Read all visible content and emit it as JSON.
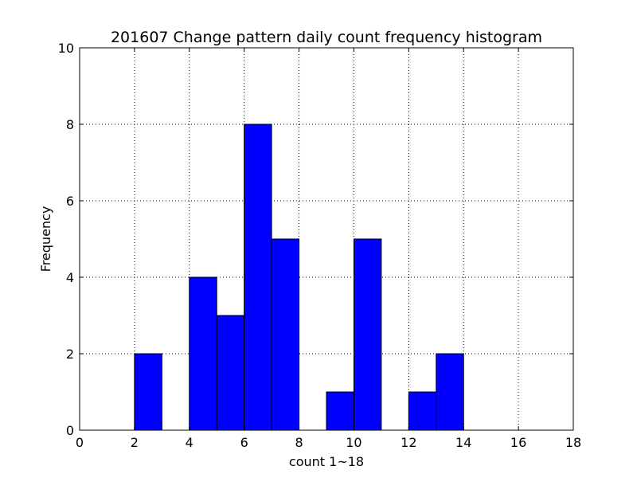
{
  "chart_data": {
    "type": "bar",
    "title": "201607 Change pattern daily count frequency histogram",
    "xlabel": "count 1~18",
    "ylabel": "Frequency",
    "xlim": [
      0,
      18
    ],
    "ylim": [
      0,
      10
    ],
    "xticks": [
      0,
      2,
      4,
      6,
      8,
      10,
      12,
      14,
      16,
      18
    ],
    "yticks": [
      0,
      2,
      4,
      6,
      8,
      10
    ],
    "grid": true,
    "bar_color": "#0000ff",
    "bins": [
      {
        "x0": 1,
        "x1": 2,
        "value": 0
      },
      {
        "x0": 2,
        "x1": 3,
        "value": 2
      },
      {
        "x0": 3,
        "x1": 4,
        "value": 0
      },
      {
        "x0": 4,
        "x1": 5,
        "value": 4
      },
      {
        "x0": 5,
        "x1": 6,
        "value": 3
      },
      {
        "x0": 6,
        "x1": 7,
        "value": 8
      },
      {
        "x0": 7,
        "x1": 8,
        "value": 5
      },
      {
        "x0": 8,
        "x1": 9,
        "value": 0
      },
      {
        "x0": 9,
        "x1": 10,
        "value": 1
      },
      {
        "x0": 10,
        "x1": 11,
        "value": 5
      },
      {
        "x0": 11,
        "x1": 12,
        "value": 0
      },
      {
        "x0": 12,
        "x1": 13,
        "value": 1
      },
      {
        "x0": 13,
        "x1": 14,
        "value": 2
      },
      {
        "x0": 14,
        "x1": 15,
        "value": 0
      },
      {
        "x0": 15,
        "x1": 16,
        "value": 0
      },
      {
        "x0": 16,
        "x1": 17,
        "value": 0
      },
      {
        "x0": 17,
        "x1": 18,
        "value": 0
      }
    ]
  }
}
